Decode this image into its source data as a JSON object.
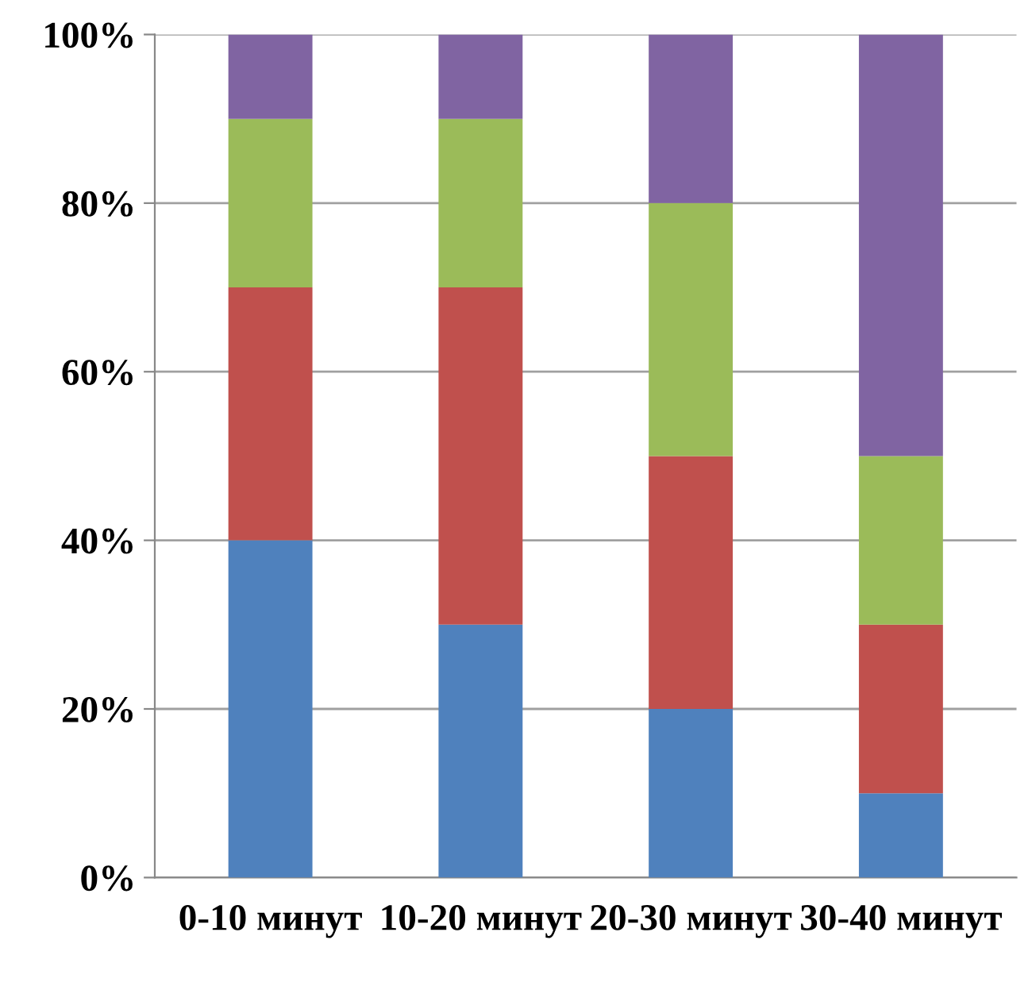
{
  "chart_data": {
    "type": "bar",
    "stacked": true,
    "categories": [
      "0-10 минут",
      "10-20 минут",
      "20-30 минут",
      "30-40 минут"
    ],
    "series": [
      {
        "color": "#4f81bd",
        "values": [
          40,
          30,
          20,
          10
        ]
      },
      {
        "color": "#c0504d",
        "values": [
          30,
          40,
          30,
          20
        ]
      },
      {
        "color": "#9bbb59",
        "values": [
          20,
          20,
          30,
          20
        ]
      },
      {
        "color": "#8064a2",
        "values": [
          10,
          10,
          20,
          50
        ]
      }
    ],
    "ylim": [
      0,
      100
    ],
    "yticks": [
      {
        "value": 0,
        "label": "0%"
      },
      {
        "value": 20,
        "label": "20%"
      },
      {
        "value": 40,
        "label": "40%"
      },
      {
        "value": 60,
        "label": "60%"
      },
      {
        "value": 80,
        "label": "80%"
      },
      {
        "value": 100,
        "label": "100%"
      }
    ],
    "grid": "y",
    "legend": false
  }
}
